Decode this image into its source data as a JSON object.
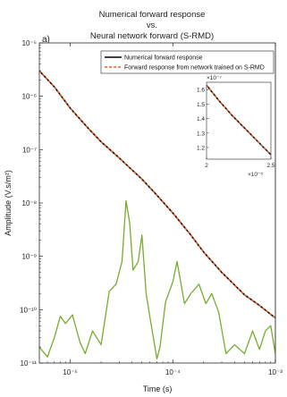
{
  "chart_data": {
    "type": "line",
    "title": [
      "Numerical forward response",
      "vs.",
      "Neural network forward (S-RMD)"
    ],
    "panel_label": "a)",
    "xlabel": "Time (s)",
    "ylabel": "Amplitude (V.s/m²)",
    "x_scale": "log",
    "y_scale": "log",
    "xlim": [
      5e-06,
      0.001
    ],
    "ylim": [
      1e-11,
      1e-05
    ],
    "x_ticks": [
      {
        "value": 1e-05,
        "label": "10⁻⁵"
      },
      {
        "value": 0.0001,
        "label": "10⁻⁴"
      },
      {
        "value": 0.001,
        "label": "10⁻³"
      }
    ],
    "y_ticks": [
      {
        "value": 1e-11,
        "label": "10⁻¹¹"
      },
      {
        "value": 1e-10,
        "label": "10⁻¹⁰"
      },
      {
        "value": 1e-09,
        "label": "10⁻⁹"
      },
      {
        "value": 1e-08,
        "label": "10⁻⁸"
      },
      {
        "value": 1e-07,
        "label": "10⁻⁷"
      },
      {
        "value": 1e-06,
        "label": "10⁻⁶"
      },
      {
        "value": 1e-05,
        "label": "10⁻⁵"
      }
    ],
    "legend_position": "top-right",
    "series": [
      {
        "name": "Numerical forward response",
        "color": "#000000",
        "style": "solid",
        "x": [
          5e-06,
          7e-06,
          1e-05,
          1.5e-05,
          2e-05,
          3e-05,
          5e-05,
          7e-05,
          0.0001,
          0.00015,
          0.0002,
          0.0003,
          0.0005,
          0.0007,
          0.001
        ],
        "y": [
          3e-06,
          1.5e-06,
          6e-07,
          2.5e-07,
          1.4e-07,
          7e-08,
          2.8e-08,
          1.4e-08,
          6.5e-09,
          2.5e-09,
          1.2e-09,
          5e-10,
          1.9e-10,
          1.2e-10,
          7e-11
        ]
      },
      {
        "name": "Forward response from network trained on S-RMD",
        "color": "#e3622a",
        "style": "dashed",
        "x": [
          5e-06,
          7e-06,
          1e-05,
          1.5e-05,
          2e-05,
          3e-05,
          5e-05,
          7e-05,
          0.0001,
          0.00015,
          0.0002,
          0.0003,
          0.0005,
          0.0007,
          0.001
        ],
        "y": [
          3e-06,
          1.5e-06,
          6e-07,
          2.5e-07,
          1.4e-07,
          7e-08,
          2.8e-08,
          1.4e-08,
          6.5e-09,
          2.5e-09,
          1.2e-09,
          5e-10,
          1.9e-10,
          1.2e-10,
          7e-11
        ]
      },
      {
        "color": "#77ac30",
        "style": "solid",
        "x": [
          5e-06,
          6e-06,
          7e-06,
          8e-06,
          9e-06,
          1.05e-05,
          1.25e-05,
          1.4e-05,
          1.65e-05,
          2e-05,
          2.4e-05,
          2.8e-05,
          3.2e-05,
          3.5e-05,
          3.8e-05,
          4.1e-05,
          4.6e-05,
          5e-05,
          5.5e-05,
          6e-05,
          7e-05,
          7.5e-05,
          8.5e-05,
          0.0001,
          0.00011,
          0.00013,
          0.00015,
          0.00018,
          0.00021,
          0.00024,
          0.00028,
          0.00033,
          0.0004,
          0.0005,
          0.0006,
          0.0007,
          0.0008,
          0.0009,
          0.001
        ],
        "y": [
          2e-11,
          1.3e-11,
          3e-11,
          7.5e-11,
          5.5e-11,
          8e-11,
          2.4e-11,
          1.5e-11,
          4e-11,
          2.2e-11,
          2.2e-10,
          3e-10,
          8e-10,
          1.1e-08,
          4.2e-09,
          5.5e-10,
          8e-10,
          2.5e-09,
          2e-10,
          7e-11,
          1.2e-11,
          2e-11,
          1.4e-10,
          3.3e-10,
          8e-10,
          1.3e-10,
          2e-10,
          3e-10,
          1.3e-10,
          2e-10,
          9e-11,
          1.5e-11,
          2.2e-11,
          1.5e-11,
          4e-11,
          1.8e-11,
          4e-11,
          5e-11,
          1.5e-11
        ]
      }
    ],
    "inset": {
      "xlim": [
        2.0,
        2.5
      ],
      "ylim": [
        1.12,
        1.65
      ],
      "x_multiplier": "×10⁻⁵",
      "y_multiplier": "×10⁻⁷",
      "x_ticks": [
        {
          "value": 2.0,
          "label": "2"
        },
        {
          "value": 2.5,
          "label": "2.5"
        }
      ],
      "y_ticks": [
        {
          "value": 1.2,
          "label": "1.2"
        },
        {
          "value": 1.3,
          "label": "1.3"
        },
        {
          "value": 1.4,
          "label": "1.4"
        },
        {
          "value": 1.5,
          "label": "1.5"
        },
        {
          "value": 1.6,
          "label": "1.6"
        }
      ],
      "series": [
        {
          "color": "#000000",
          "style": "solid",
          "x": [
            2.0,
            2.1,
            2.2,
            2.3,
            2.4,
            2.5
          ],
          "y": [
            1.63,
            1.52,
            1.42,
            1.33,
            1.24,
            1.15
          ]
        },
        {
          "color": "#e3622a",
          "style": "dashed",
          "x": [
            2.0,
            2.1,
            2.2,
            2.3,
            2.4,
            2.5
          ],
          "y": [
            1.63,
            1.52,
            1.42,
            1.33,
            1.24,
            1.15
          ]
        }
      ]
    }
  }
}
